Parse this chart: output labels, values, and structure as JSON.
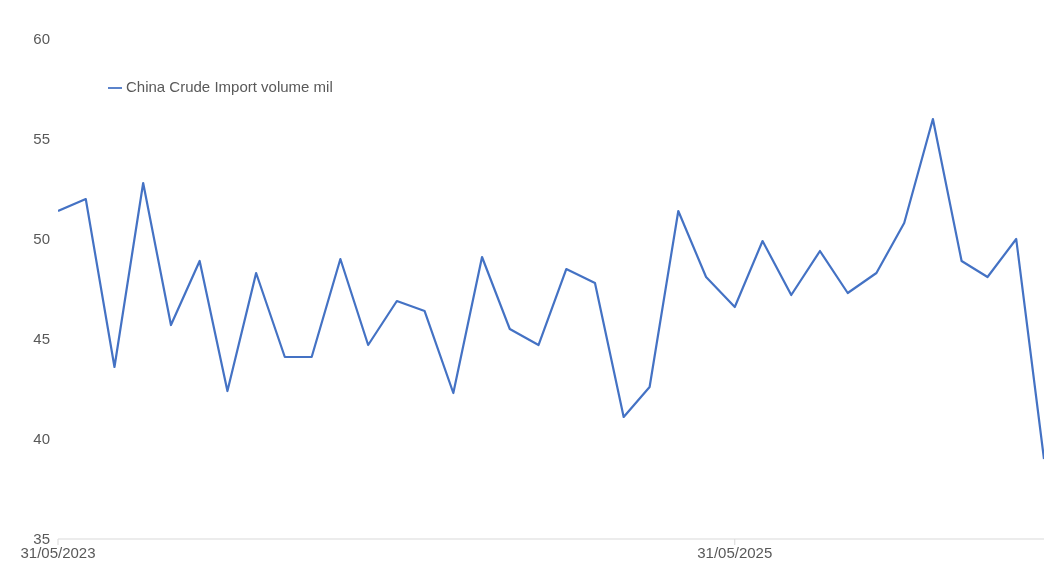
{
  "chart_data": {
    "type": "line",
    "x": [
      "2023-05-31",
      "2023-06-30",
      "2023-07-31",
      "2023-08-31",
      "2023-09-30",
      "2023-10-31",
      "2023-11-30",
      "2023-12-31",
      "2024-01-31",
      "2024-02-29",
      "2024-03-31",
      "2024-04-30",
      "2024-05-31",
      "2024-06-30",
      "2024-07-31",
      "2024-08-31",
      "2024-09-30",
      "2024-10-31",
      "2024-11-30",
      "2024-12-31",
      "2025-01-31",
      "2025-02-28",
      "2025-03-31",
      "2025-04-30",
      "2025-05-31",
      "2025-06-30",
      "2025-07-31",
      "2025-08-31",
      "2025-09-30",
      "2025-10-31",
      "2025-11-30",
      "2025-12-31",
      "2026-01-31",
      "2026-02-28",
      "2026-03-31",
      "2026-04-30"
    ],
    "series": [
      {
        "name": "China Crude Import volume mil",
        "color": "#4472c4",
        "values": [
          51.4,
          52.0,
          43.6,
          52.8,
          45.7,
          48.9,
          42.4,
          48.3,
          44.1,
          44.1,
          49.0,
          44.7,
          46.9,
          46.4,
          42.3,
          49.1,
          45.5,
          44.7,
          48.5,
          47.8,
          41.1,
          42.6,
          51.4,
          48.1,
          46.6,
          49.9,
          47.2,
          49.4,
          47.3,
          48.3,
          50.8,
          56.0,
          48.9,
          48.1,
          50.0,
          39.0
        ]
      }
    ],
    "xlim": [
      "2023-05-31",
      "2026-04-30"
    ],
    "xticks": [
      {
        "value": "2023-05-31",
        "label": "31/05/2023"
      },
      {
        "value": "2025-05-31",
        "label": "31/05/2025"
      }
    ],
    "ylim": [
      35,
      60
    ],
    "yticks": [
      35,
      40,
      45,
      50,
      55,
      60
    ],
    "grid": false,
    "legend": "top left",
    "marker": "none",
    "line_style": "solid"
  }
}
